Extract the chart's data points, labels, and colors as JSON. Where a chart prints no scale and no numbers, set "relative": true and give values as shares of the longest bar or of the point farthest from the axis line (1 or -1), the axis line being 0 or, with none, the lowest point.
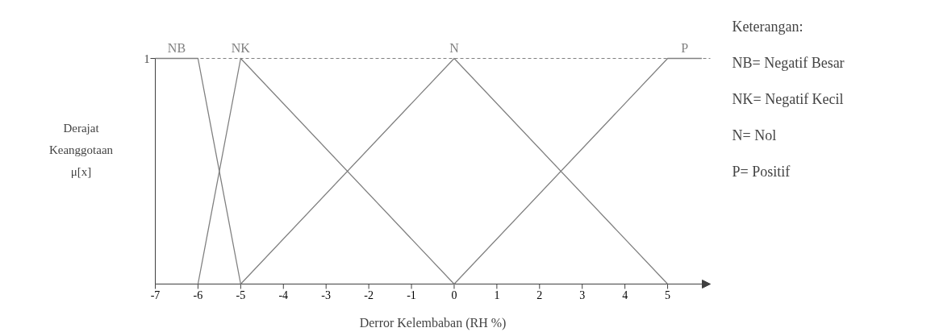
{
  "chart_data": {
    "type": "line",
    "xlabel": "Derror Kelembaban (RH %)",
    "ylabel": "Derajat Keanggotaan μ[x]",
    "xlim": [
      -7,
      6
    ],
    "xticks": [
      -7,
      -6,
      -5,
      -4,
      -3,
      -2,
      -1,
      0,
      1,
      2,
      3,
      4,
      5
    ],
    "relative": true,
    "grid": false,
    "marker": "none",
    "line_style": "solid",
    "series": [
      {
        "name": "NB",
        "color": "#808080",
        "x": [
          -7,
          -6,
          -5
        ],
        "values": [
          1,
          1,
          0
        ]
      },
      {
        "name": "NK",
        "color": "#808080",
        "x": [
          -6,
          -5,
          0
        ],
        "values": [
          0,
          1,
          0
        ]
      },
      {
        "name": "N",
        "color": "#808080",
        "x": [
          -5,
          0,
          5
        ],
        "values": [
          0,
          1,
          0
        ]
      },
      {
        "name": "P",
        "color": "#808080",
        "x": [
          0,
          5,
          5.8
        ],
        "values": [
          0,
          1,
          1
        ]
      }
    ],
    "ref_lines": [
      {
        "axis": "y",
        "value": 1,
        "line_style": "dashed",
        "color": "#808080"
      }
    ],
    "annotations": [
      "1",
      "Keterangan:",
      "NB= Negatif Besar",
      "NK= Negatif Kecil",
      "N= Nol",
      "P= Positif"
    ]
  }
}
